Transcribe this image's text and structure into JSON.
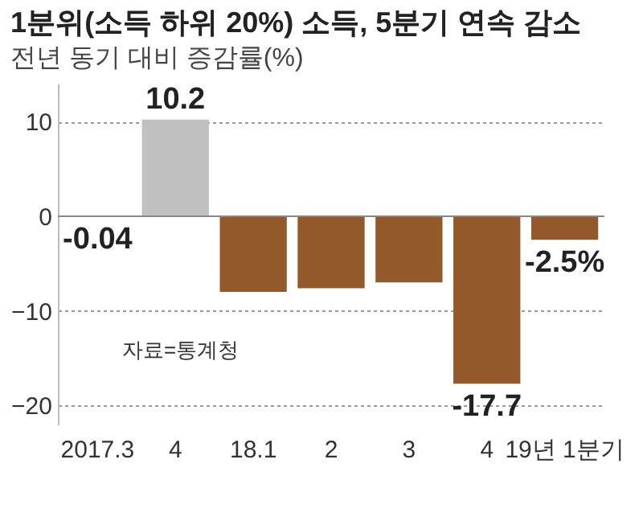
{
  "chart_data": {
    "type": "bar",
    "title": "1분위(소득 하위 20%) 소득, 5분기 연속 감소",
    "subtitle": "전년 동기 대비 증감률(%)",
    "categories": [
      "2017.3",
      "4",
      "18.1",
      "2",
      "3",
      "4",
      "19년 1분기"
    ],
    "values": [
      -0.04,
      10.2,
      -8.0,
      -7.6,
      -7.0,
      -17.7,
      -2.5
    ],
    "colors": [
      "#93592b",
      "#c0c0c0",
      "#93592b",
      "#93592b",
      "#93592b",
      "#93592b",
      "#93592b"
    ],
    "value_labels": [
      "-0.04",
      "10.2",
      null,
      null,
      null,
      "-17.7",
      "-2.5%"
    ],
    "ylim": [
      -22,
      14
    ],
    "yticks": [
      -20,
      -10,
      0,
      10
    ],
    "grid": "y",
    "annotations": [
      "자료=통계청"
    ]
  }
}
